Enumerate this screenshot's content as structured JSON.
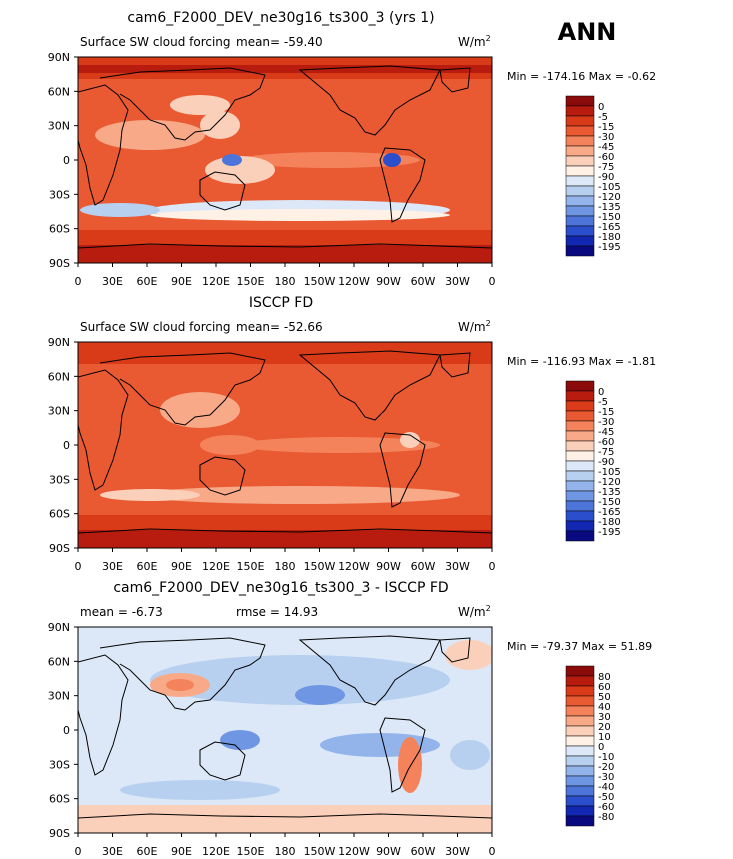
{
  "season": "ANN",
  "colors": {
    "model_scale": [
      "#8b0a0a",
      "#b81c0e",
      "#d93b19",
      "#ea5a32",
      "#f4835b",
      "#f8a988",
      "#fbd0bb",
      "#fff1e6",
      "#dce8f7",
      "#b7d0f0",
      "#92b4ea",
      "#6f96e2",
      "#4c74d9",
      "#2b4fcc",
      "#1228b3",
      "#0a0a80"
    ],
    "diff_scale": [
      "#8b0a0a",
      "#b81c0e",
      "#d93b19",
      "#ea5a32",
      "#f4835b",
      "#f8a988",
      "#fbd0bb",
      "#fff1e6",
      "#dce8f7",
      "#b7d0f0",
      "#92b4ea",
      "#6f96e2",
      "#4c74d9",
      "#2b4fcc",
      "#1228b3",
      "#0a0a80"
    ],
    "coast": "#000000"
  },
  "chart_data": [
    {
      "type": "heatmap",
      "title": "cam6_F2000_DEV_ne30g16_ts300_3 (yrs 1)",
      "left_label": "Surface SW cloud forcing",
      "mean_label": "mean=  -59.40",
      "units_label": "W/m",
      "units_sup": "2",
      "min": -174.16,
      "max": -0.62,
      "stats_label": "Min = -174.16 Max =  -0.62",
      "legend_labels": [
        "0",
        "-5",
        "-15",
        "-30",
        "-45",
        "-60",
        "-75",
        "-90",
        "-105",
        "-120",
        "-135",
        "-150",
        "-165",
        "-180",
        "-195"
      ],
      "ylabels": [
        "90N",
        "60N",
        "30N",
        "0",
        "30S",
        "60S",
        "90S"
      ],
      "xlabels": [
        "0",
        "30E",
        "60E",
        "90E",
        "120E",
        "150E",
        "180",
        "150W",
        "120W",
        "90W",
        "60W",
        "30W",
        "0"
      ],
      "xlim": [
        0,
        360
      ],
      "ylim": [
        -90,
        90
      ]
    },
    {
      "type": "heatmap",
      "title": "ISCCP FD",
      "left_label": "Surface SW cloud forcing",
      "mean_label": "mean=  -52.66",
      "units_label": "W/m",
      "units_sup": "2",
      "min": -116.93,
      "max": -1.81,
      "stats_label": "Min = -116.93 Max =  -1.81",
      "legend_labels": [
        "0",
        "-5",
        "-15",
        "-30",
        "-45",
        "-60",
        "-75",
        "-90",
        "-105",
        "-120",
        "-135",
        "-150",
        "-165",
        "-180",
        "-195"
      ],
      "ylabels": [
        "90N",
        "60N",
        "30N",
        "0",
        "30S",
        "60S",
        "90S"
      ],
      "xlabels": [
        "0",
        "30E",
        "60E",
        "90E",
        "120E",
        "150E",
        "180",
        "150W",
        "120W",
        "90W",
        "60W",
        "30W",
        "0"
      ],
      "xlim": [
        0,
        360
      ],
      "ylim": [
        -90,
        90
      ]
    },
    {
      "type": "heatmap",
      "title": "cam6_F2000_DEV_ne30g16_ts300_3 - ISCCP FD",
      "left_label": "mean =   -6.73",
      "mean_label": "rmse =  14.93",
      "units_label": "W/m",
      "units_sup": "2",
      "min": -79.37,
      "max": 51.89,
      "stats_label": "Min = -79.37 Max =  51.89",
      "legend_labels": [
        "80",
        "60",
        "50",
        "40",
        "30",
        "20",
        "10",
        "0",
        "-10",
        "-20",
        "-30",
        "-40",
        "-50",
        "-60",
        "-80"
      ],
      "ylabels": [
        "90N",
        "60N",
        "30N",
        "0",
        "30S",
        "60S",
        "90S"
      ],
      "xlabels": [
        "0",
        "30E",
        "60E",
        "90E",
        "120E",
        "150E",
        "180",
        "150W",
        "120W",
        "90W",
        "60W",
        "30W",
        "0"
      ],
      "xlim": [
        0,
        360
      ],
      "ylim": [
        -90,
        90
      ]
    }
  ]
}
